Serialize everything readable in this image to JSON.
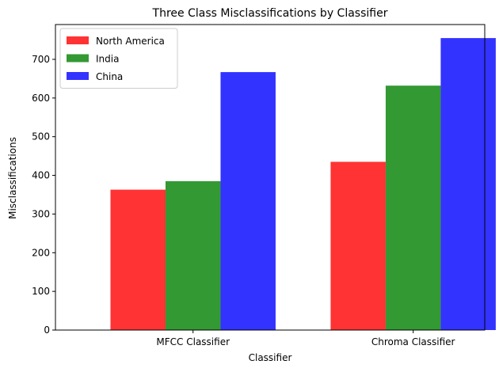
{
  "chart_data": {
    "type": "bar",
    "title": "Three Class Misclassifications by Classifier",
    "xlabel": "Classifier",
    "ylabel": "Misclassifications",
    "categories": [
      "MFCC Classifier",
      "Chroma Classifier"
    ],
    "series": [
      {
        "name": "North America",
        "values": [
          363,
          435
        ],
        "color": "#ff0000"
      },
      {
        "name": "India",
        "values": [
          385,
          632
        ],
        "color": "#008000"
      },
      {
        "name": "China",
        "values": [
          667,
          755
        ],
        "color": "#0000ff"
      }
    ],
    "bar_opacity": 0.8,
    "ylim": [
      0,
      790
    ],
    "yticks": [
      0,
      100,
      200,
      300,
      400,
      500,
      600,
      700
    ],
    "grid": false,
    "legend_position": "top-left"
  }
}
